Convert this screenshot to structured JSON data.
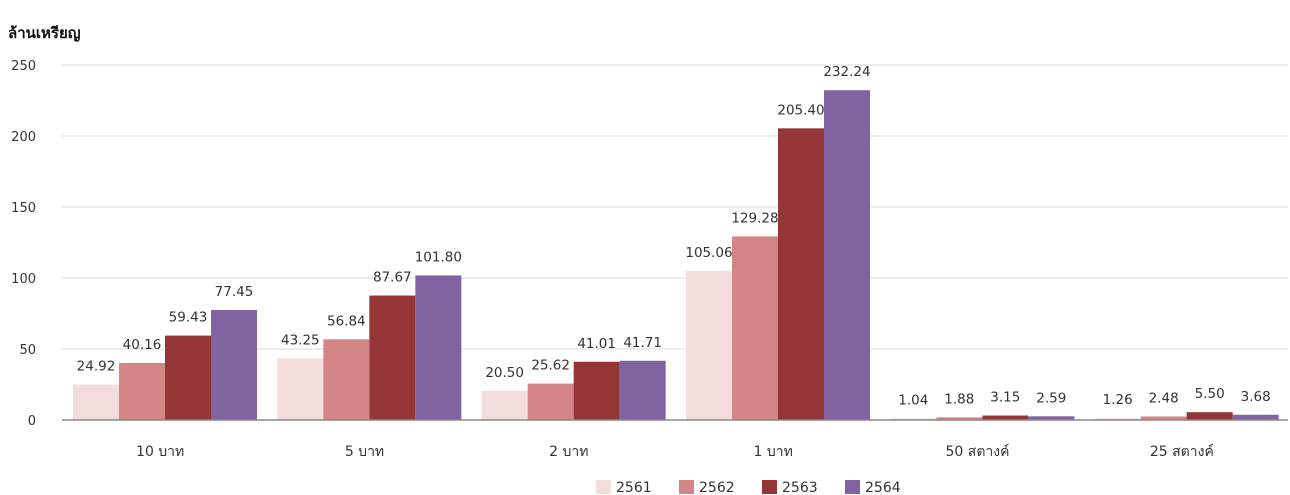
{
  "chart_data": {
    "type": "bar",
    "title": "",
    "ylabel": "ล้านเหรียญ",
    "xlabel": "",
    "ylim": [
      0,
      250
    ],
    "yticks": [
      0,
      50,
      100,
      150,
      200,
      250
    ],
    "grid": true,
    "legend_position": "bottom",
    "categories": [
      "10 บาท",
      "5 บาท",
      "2 บาท",
      "1 บาท",
      "50 สตางค์",
      "25 สตางค์"
    ],
    "series": [
      {
        "name": "2561",
        "color": "#f2dcdc",
        "values": [
          24.92,
          43.25,
          20.5,
          105.06,
          1.04,
          1.26
        ],
        "labels": [
          "24.92",
          "43.25",
          "20.50",
          "105.06",
          "1.04",
          "1.26"
        ]
      },
      {
        "name": "2562",
        "color": "#d48686",
        "values": [
          40.16,
          56.84,
          25.62,
          129.28,
          1.88,
          2.48
        ],
        "labels": [
          "40.16",
          "56.84",
          "25.62",
          "129.28",
          "1.88",
          "2.48"
        ]
      },
      {
        "name": "2563",
        "color": "#943636",
        "values": [
          59.43,
          87.67,
          41.01,
          205.4,
          3.15,
          5.5
        ],
        "labels": [
          "59.43",
          "87.67",
          "41.01",
          "205.40",
          "3.15",
          "5.50"
        ]
      },
      {
        "name": "2564",
        "color": "#8064a2",
        "values": [
          77.45,
          101.8,
          41.71,
          232.24,
          2.59,
          3.68
        ],
        "labels": [
          "77.45",
          "101.80",
          "41.71",
          "232.24",
          "2.59",
          "3.68"
        ]
      }
    ]
  }
}
